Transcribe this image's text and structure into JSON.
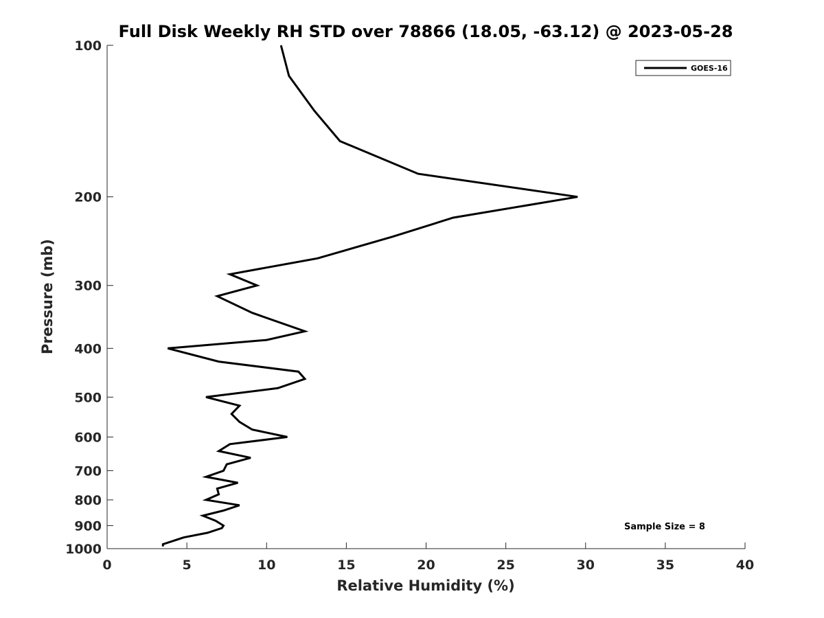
{
  "chart_data": {
    "type": "line",
    "title": "Full Disk Weekly RH STD over 78866 (18.05, -63.12) @ 2023-05-28",
    "xlabel": "Relative Humidity (%)",
    "ylabel": "Pressure (mb)",
    "xlim": [
      0,
      40
    ],
    "ylim": [
      1000,
      100
    ],
    "yscale": "log",
    "xticks": [
      0,
      5,
      10,
      15,
      20,
      25,
      30,
      35,
      40
    ],
    "xtick_labels": [
      "0",
      "5",
      "10",
      "15",
      "20",
      "25",
      "30",
      "35",
      "40"
    ],
    "yticks": [
      100,
      200,
      300,
      400,
      500,
      600,
      700,
      800,
      900,
      1000
    ],
    "ytick_labels": [
      "100",
      "200",
      "300",
      "400",
      "500",
      "600",
      "700",
      "800",
      "900",
      "1000"
    ],
    "grid": false,
    "legend_position": "top-right",
    "series": [
      {
        "name": "GOES-16",
        "color": "#000000",
        "x": [
          10.9,
          11.4,
          13.0,
          14.6,
          19.5,
          29.5,
          21.7,
          17.9,
          13.2,
          7.7,
          9.4,
          6.9,
          9.1,
          12.4,
          10.0,
          3.8,
          7.0,
          12.0,
          12.4,
          10.7,
          6.2,
          8.3,
          7.8,
          8.3,
          9.1,
          11.3,
          7.7,
          7.0,
          9.0,
          7.5,
          7.3,
          6.2,
          8.2,
          6.9,
          7.0,
          6.2,
          8.3,
          7.3,
          6.0,
          6.8,
          7.3,
          7.2,
          6.3,
          4.8,
          3.5,
          3.5
        ],
        "y": [
          100,
          115,
          135,
          155,
          180,
          200,
          220,
          240,
          265,
          285,
          300,
          315,
          340,
          370,
          385,
          400,
          425,
          445,
          460,
          480,
          500,
          520,
          540,
          560,
          580,
          600,
          620,
          640,
          660,
          680,
          700,
          720,
          740,
          760,
          780,
          800,
          820,
          840,
          860,
          880,
          900,
          910,
          930,
          950,
          980,
          990
        ]
      }
    ],
    "annotations": [
      {
        "text": "Sample Size = 8",
        "x": 35,
        "y": 900
      }
    ]
  }
}
